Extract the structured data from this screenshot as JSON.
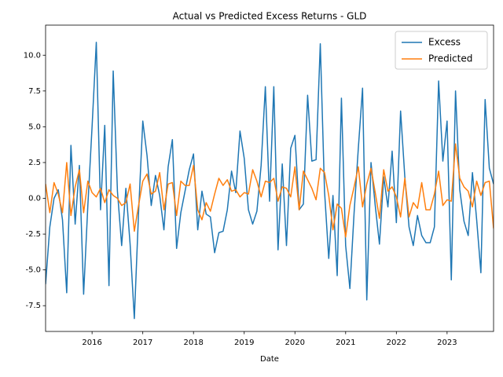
{
  "chart_data": {
    "type": "line",
    "title": "Actual vs Predicted Excess Returns - GLD",
    "xlabel": "Date",
    "x": [
      "2015-02",
      "2015-03",
      "2015-04",
      "2015-05",
      "2015-06",
      "2015-07",
      "2015-08",
      "2015-09",
      "2015-10",
      "2015-11",
      "2015-12",
      "2016-01",
      "2016-02",
      "2016-03",
      "2016-04",
      "2016-05",
      "2016-06",
      "2016-07",
      "2016-08",
      "2016-09",
      "2016-10",
      "2016-11",
      "2016-12",
      "2017-01",
      "2017-02",
      "2017-03",
      "2017-04",
      "2017-05",
      "2017-06",
      "2017-07",
      "2017-08",
      "2017-09",
      "2017-10",
      "2017-11",
      "2017-12",
      "2018-01",
      "2018-02",
      "2018-03",
      "2018-04",
      "2018-05",
      "2018-06",
      "2018-07",
      "2018-08",
      "2018-09",
      "2018-10",
      "2018-11",
      "2018-12",
      "2019-01",
      "2019-02",
      "2019-03",
      "2019-04",
      "2019-05",
      "2019-06",
      "2019-07",
      "2019-08",
      "2019-09",
      "2019-10",
      "2019-11",
      "2019-12",
      "2020-01",
      "2020-02",
      "2020-03",
      "2020-04",
      "2020-05",
      "2020-06",
      "2020-07",
      "2020-08",
      "2020-09",
      "2020-10",
      "2020-11",
      "2020-12",
      "2021-01",
      "2021-02",
      "2021-03",
      "2021-04",
      "2021-05",
      "2021-06",
      "2021-07",
      "2021-08",
      "2021-09",
      "2021-10",
      "2021-11",
      "2021-12",
      "2022-01",
      "2022-02",
      "2022-03",
      "2022-04",
      "2022-05",
      "2022-06",
      "2022-07",
      "2022-08",
      "2022-09",
      "2022-10",
      "2022-11",
      "2022-12",
      "2023-01",
      "2023-02",
      "2023-03",
      "2023-04",
      "2023-05",
      "2023-06",
      "2023-07",
      "2023-08",
      "2023-09",
      "2023-10",
      "2023-11",
      "2023-12"
    ],
    "series": [
      {
        "name": "Excess",
        "color": "#1f77b4",
        "values": [
          -6,
          -2,
          0,
          0.6,
          -1.5,
          -6.6,
          3.7,
          -1.8,
          2.3,
          -6.7,
          -0.5,
          5,
          10.9,
          -0.8,
          5.1,
          -6.1,
          8.9,
          0.5,
          -3.3,
          0.7,
          -3.2,
          -8.4,
          -1,
          5.4,
          3,
          -0.5,
          1.6,
          0.2,
          -2.2,
          2.2,
          4.1,
          -3.5,
          -1,
          0.5,
          2,
          3.1,
          -2.2,
          0.5,
          -1.1,
          -1.3,
          -3.8,
          -2.4,
          -2.3,
          -0.8,
          1.9,
          0.4,
          4.7,
          2.8,
          -0.8,
          -1.8,
          -0.9,
          2.3,
          7.8,
          -0.2,
          7.8,
          -3.6,
          2.4,
          -3.3,
          3.5,
          4.4,
          -0.8,
          -0.4,
          7.2,
          2.6,
          2.7,
          10.8,
          0.5,
          -4.2,
          0.2,
          -5.4,
          7,
          -3.3,
          -6.3,
          -1,
          3.5,
          7.7,
          -7.1,
          2.5,
          -0.5,
          -3.2,
          1.5,
          -0.6,
          3.3,
          -1.7,
          6.1,
          1.5,
          -2,
          -3.3,
          -1.2,
          -2.6,
          -3.1,
          -3.1,
          -2,
          8.2,
          2.6,
          5.4,
          -5.7,
          7.5,
          0.6,
          -1.6,
          -2.6,
          1.8,
          -1.5,
          -5.2,
          6.9,
          2.1,
          1
        ]
      },
      {
        "name": "Predicted",
        "color": "#ff7f0e",
        "values": [
          1,
          -1,
          1.1,
          0.3,
          -1,
          2.5,
          -1.2,
          0.8,
          2,
          -1,
          1.2,
          0.4,
          0.1,
          0.7,
          -0.3,
          0.6,
          0.2,
          0,
          -0.5,
          -0.3,
          1,
          -2.3,
          -0.5,
          1.2,
          1.7,
          0.3,
          0.5,
          1.8,
          -0.8,
          1,
          1.1,
          -1.2,
          1.2,
          0.9,
          0.9,
          2.3,
          -0.8,
          -1.5,
          -0.3,
          -0.9,
          0.3,
          1.4,
          0.9,
          1.3,
          0.5,
          0.6,
          0.1,
          0.4,
          0.3,
          2,
          1.2,
          0.1,
          1.2,
          1.1,
          1.4,
          -0.2,
          0.8,
          0.7,
          0.1,
          2.2,
          -0.8,
          1.9,
          1.3,
          0.7,
          -0.1,
          2.1,
          1.8,
          0.2,
          -2.2,
          -0.4,
          -0.7,
          -2.7,
          -0.5,
          0.8,
          2.2,
          -0.6,
          1,
          2.1,
          0.4,
          -1.4,
          2,
          0.5,
          0.8,
          0.1,
          -1.3,
          1.4,
          -1.3,
          -0.3,
          -0.7,
          1.1,
          -0.8,
          -0.8,
          0.3,
          1.9,
          -0.5,
          -0.1,
          -0.2,
          3.8,
          1.4,
          0.8,
          0.5,
          -0.6,
          1.2,
          0.2,
          1.1,
          1.2,
          -2.1
        ]
      }
    ],
    "xlim": [
      "2015-02",
      "2023-12"
    ],
    "xticks": [
      {
        "value": "2016-01",
        "label": "2016"
      },
      {
        "value": "2017-01",
        "label": "2017"
      },
      {
        "value": "2018-01",
        "label": "2018"
      },
      {
        "value": "2019-01",
        "label": "2019"
      },
      {
        "value": "2020-01",
        "label": "2020"
      },
      {
        "value": "2021-01",
        "label": "2021"
      },
      {
        "value": "2022-01",
        "label": "2022"
      },
      {
        "value": "2023-01",
        "label": "2023"
      }
    ],
    "ylim": [
      -9.3,
      12.1
    ],
    "yticks": [
      -7.5,
      {
        "value": -5,
        "label": "-5.0"
      },
      -2.5,
      {
        "value": 0,
        "label": "0.0"
      },
      2.5,
      {
        "value": 5,
        "label": "5.0"
      },
      7.5,
      {
        "value": 10,
        "label": "10.0"
      }
    ],
    "legend": "upper right"
  }
}
